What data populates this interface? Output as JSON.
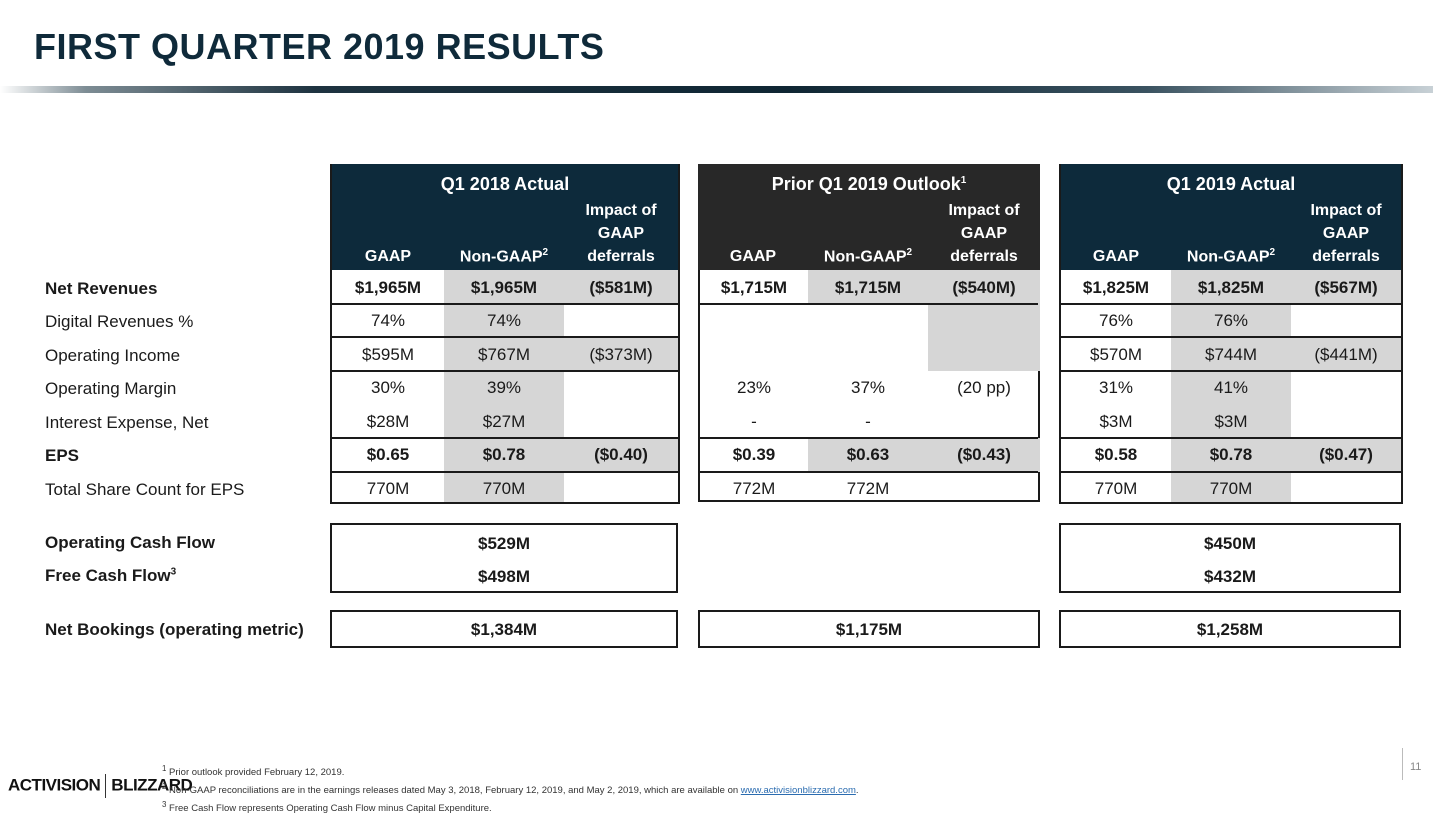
{
  "title": "FIRST QUARTER 2019 RESULTS",
  "row_labels": {
    "net_revenues": "Net Revenues",
    "digital_revenues": "Digital Revenues %",
    "operating_income": "Operating Income",
    "operating_margin": "Operating Margin",
    "interest_expense": "Interest Expense, Net",
    "eps": "EPS",
    "share_count": "Total Share Count for EPS",
    "operating_cash_flow": "Operating Cash Flow",
    "free_cash_flow": "Free Cash Flow",
    "free_cash_flow_sup": "3",
    "net_bookings": "Net Bookings (operating metric)"
  },
  "col_headers": {
    "gaap": "GAAP",
    "non_gaap": "Non-GAAP",
    "non_gaap_sup": "2",
    "impact_1": "Impact of",
    "impact_2": "GAAP",
    "impact_3": "deferrals"
  },
  "q1_2018": {
    "title": "Q1 2018 Actual",
    "net_revenues": [
      "$1,965M",
      "$1,965M",
      "($581M)"
    ],
    "digital_revenues": [
      "74%",
      "74%",
      ""
    ],
    "operating_income": [
      "$595M",
      "$767M",
      "($373M)"
    ],
    "operating_margin": [
      "30%",
      "39%",
      ""
    ],
    "interest_expense": [
      "$28M",
      "$27M",
      ""
    ],
    "eps": [
      "$0.65",
      "$0.78",
      "($0.40)"
    ],
    "share_count": [
      "770M",
      "770M",
      ""
    ],
    "operating_cash_flow": "$529M",
    "free_cash_flow": "$498M",
    "net_bookings": "$1,384M"
  },
  "outlook": {
    "title": "Prior Q1 2019 Outlook",
    "title_sup": "1",
    "net_revenues": [
      "$1,715M",
      "$1,715M",
      "($540M)"
    ],
    "operating_margin": [
      "23%",
      "37%",
      "(20 pp)"
    ],
    "interest_expense": [
      "-",
      "-",
      ""
    ],
    "eps": [
      "$0.39",
      "$0.63",
      "($0.43)"
    ],
    "share_count": [
      "772M",
      "772M",
      ""
    ],
    "net_bookings": "$1,175M"
  },
  "q1_2019": {
    "title": "Q1 2019 Actual",
    "net_revenues": [
      "$1,825M",
      "$1,825M",
      "($567M)"
    ],
    "digital_revenues": [
      "76%",
      "76%",
      ""
    ],
    "operating_income": [
      "$570M",
      "$744M",
      "($441M)"
    ],
    "operating_margin": [
      "31%",
      "41%",
      ""
    ],
    "interest_expense": [
      "$3M",
      "$3M",
      ""
    ],
    "eps": [
      "$0.58",
      "$0.78",
      "($0.47)"
    ],
    "share_count": [
      "770M",
      "770M",
      ""
    ],
    "operating_cash_flow": "$450M",
    "free_cash_flow": "$432M",
    "net_bookings": "$1,258M"
  },
  "footer": {
    "logo_left": "ACTIVISION",
    "logo_right": "BLIZZARD",
    "note1_sup": "1",
    "note1": "Prior outlook provided February 12, 2019.",
    "note2_sup": "2",
    "note2": "Non-GAAP reconciliations are in the earnings releases dated May 3, 2018, February 12, 2019, and May 2, 2019, which are available on",
    "note2_link": "www.activisionblizzard.com",
    "note2_end": ".",
    "note3_sup": "3",
    "note3": "Free Cash Flow represents Operating Cash Flow minus Capital Expenditure.",
    "page_number": "11"
  }
}
